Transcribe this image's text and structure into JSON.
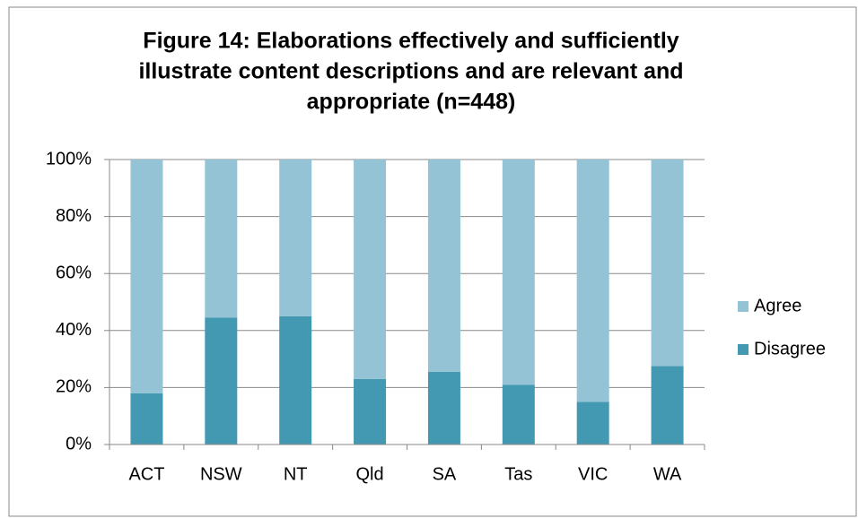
{
  "chart_data": {
    "type": "stacked_bar",
    "title": [
      "Figure 14: Elaborations effectively and sufficiently",
      "illustrate content descriptions and are relevant and",
      "appropriate (n=448)"
    ],
    "categories": [
      "ACT",
      "NSW",
      "NT",
      "Qld",
      "SA",
      "Tas",
      "VIC",
      "WA"
    ],
    "series": [
      {
        "name": "Disagree",
        "color": "#4399b1",
        "values": [
          18,
          44.5,
          45,
          23,
          25.5,
          21,
          15,
          27.5
        ]
      },
      {
        "name": "Agree",
        "color": "#93c3d5",
        "values": [
          82,
          55.5,
          55,
          77,
          74.5,
          79,
          85,
          72.5
        ]
      }
    ],
    "ylim": [
      0,
      100
    ],
    "yticks": [
      {
        "value": 0,
        "label": "0%"
      },
      {
        "value": 20,
        "label": "20%"
      },
      {
        "value": 40,
        "label": "40%"
      },
      {
        "value": 60,
        "label": "60%"
      },
      {
        "value": 80,
        "label": "80%"
      },
      {
        "value": 100,
        "label": "100%"
      }
    ],
    "grid": true,
    "legend": "right"
  }
}
